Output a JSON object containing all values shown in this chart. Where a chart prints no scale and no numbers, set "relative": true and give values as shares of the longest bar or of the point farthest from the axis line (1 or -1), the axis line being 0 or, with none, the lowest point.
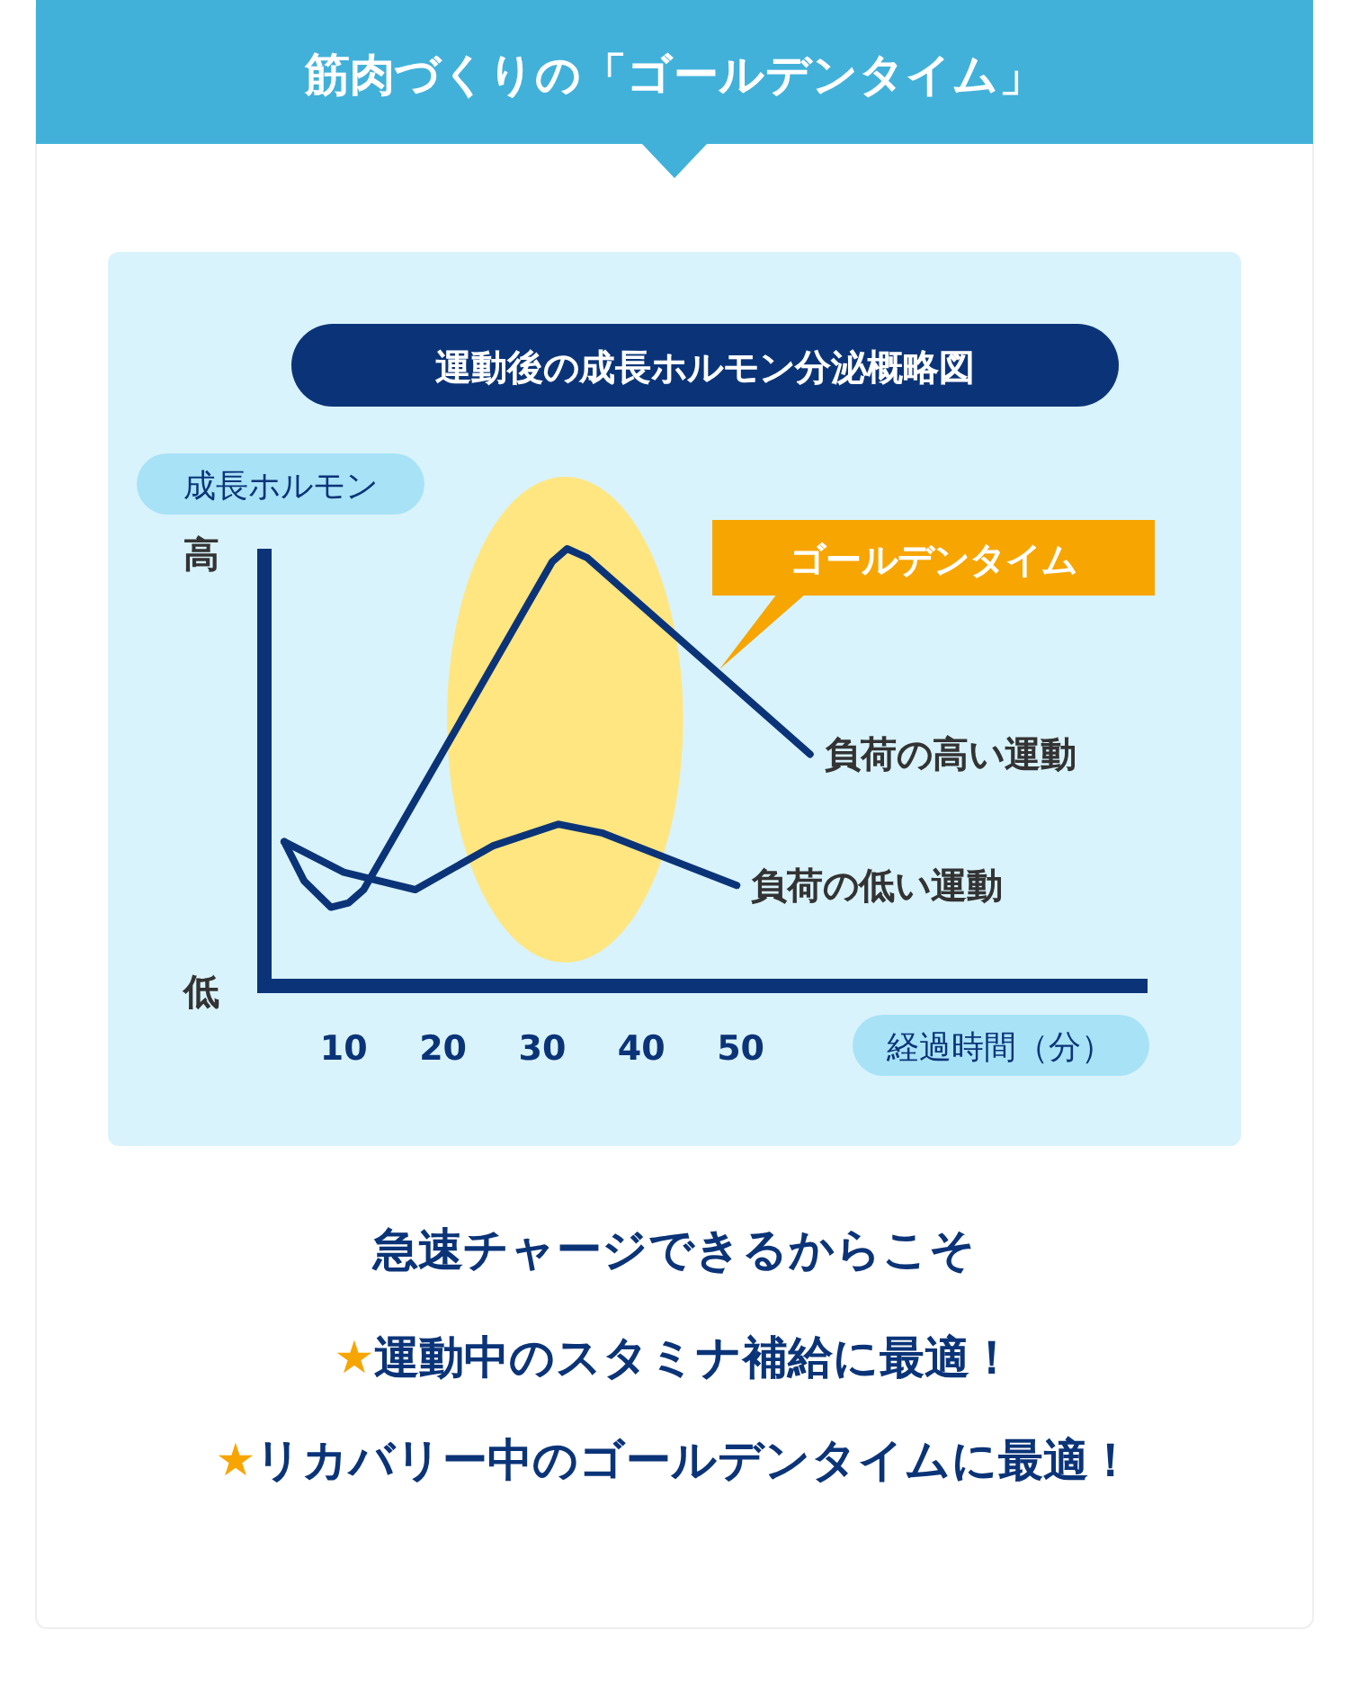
{
  "chart_data": {
    "type": "line",
    "title": "筋肉づくりの「ゴールデンタイム」",
    "subtitle": "運動後の成長ホルモン分泌概略図",
    "xlabel": "経過時間（分）",
    "ylabel": "成長ホルモン",
    "relative": true,
    "xlim": [
      2,
      91
    ],
    "xticks": [
      10,
      20,
      30,
      40,
      50
    ],
    "marker": "none",
    "line_style": "solid",
    "series": [
      {
        "name": "負荷の高い運動",
        "color": "#0b3478",
        "x": [
          4,
          6,
          8.7,
          10.5,
          12,
          31,
          32.5,
          34.5,
          57
        ],
        "values": [
          0.33,
          0.24,
          0.18,
          0.19,
          0.22,
          0.97,
          1,
          0.98,
          0.53
        ]
      },
      {
        "name": "負荷の低い運動",
        "color": "#0b3478",
        "x": [
          4,
          10,
          17.2,
          25,
          31.6,
          36,
          49.6
        ],
        "values": [
          0.33,
          0.26,
          0.22,
          0.32,
          0.37,
          0.35,
          0.23
        ]
      }
    ],
    "bands": [
      {
        "axis": "x",
        "from": 20.4,
        "to": 44.2,
        "label": "ゴールデンタイム",
        "color": "#ffe680"
      }
    ],
    "annotations": [
      "高",
      "低",
      "急速チャージできるからこそ",
      "★運動中のスタミナ補給に最適！",
      "★リカバリー中のゴールデンタイムに最適！"
    ]
  }
}
